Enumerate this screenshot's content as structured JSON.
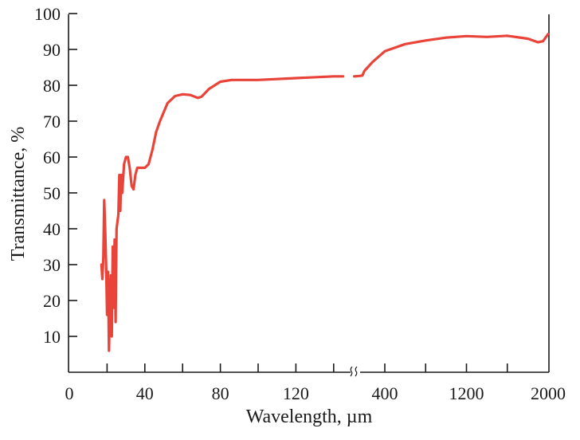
{
  "chart_data": {
    "type": "line",
    "title": "",
    "xlabel": "Wavelength, µm",
    "ylabel": "Transmittance, %",
    "ylim": [
      0,
      100
    ],
    "grid": false,
    "legend": "none",
    "line_color": "#e8443a",
    "x_axis_break": "between 140 and 400 (split scale)",
    "x_ticks_left": [
      "0",
      "40",
      "80",
      "120"
    ],
    "x_ticks_right": [
      "400",
      "1200",
      "2000"
    ],
    "y_ticks": [
      "10",
      "20",
      "30",
      "40",
      "50",
      "60",
      "70",
      "80",
      "90",
      "100"
    ],
    "series": [
      {
        "name": "segment-low-wavelength",
        "xlim": [
          0,
          150
        ],
        "points": [
          [
            17,
            30
          ],
          [
            17.5,
            26
          ],
          [
            18,
            32
          ],
          [
            18.5,
            48
          ],
          [
            19,
            40
          ],
          [
            19.5,
            30
          ],
          [
            20,
            16
          ],
          [
            20.5,
            28
          ],
          [
            21,
            6
          ],
          [
            21.5,
            20
          ],
          [
            22,
            27
          ],
          [
            22.5,
            10
          ],
          [
            23,
            35
          ],
          [
            23.5,
            18
          ],
          [
            24,
            37
          ],
          [
            24.5,
            14
          ],
          [
            25,
            40
          ],
          [
            26,
            44
          ],
          [
            26.5,
            55
          ],
          [
            27,
            45
          ],
          [
            27.5,
            55
          ],
          [
            28,
            50
          ],
          [
            29,
            58
          ],
          [
            30,
            60
          ],
          [
            31,
            60
          ],
          [
            32,
            57
          ],
          [
            33,
            52
          ],
          [
            34,
            51
          ],
          [
            35,
            55
          ],
          [
            36,
            57
          ],
          [
            38,
            57
          ],
          [
            40,
            57
          ],
          [
            42,
            58
          ],
          [
            44,
            62
          ],
          [
            46,
            67
          ],
          [
            48,
            70
          ],
          [
            52,
            75
          ],
          [
            56,
            77
          ],
          [
            60,
            77.5
          ],
          [
            64,
            77.3
          ],
          [
            68,
            76.5
          ],
          [
            70,
            76.8
          ],
          [
            74,
            79
          ],
          [
            80,
            81
          ],
          [
            86,
            81.5
          ],
          [
            100,
            81.5
          ],
          [
            120,
            82
          ],
          [
            140,
            82.5
          ],
          [
            145,
            82.5
          ]
        ]
      },
      {
        "name": "segment-high-wavelength",
        "xlim": [
          100,
          2000
        ],
        "points": [
          [
            100,
            82.5
          ],
          [
            150,
            82.6
          ],
          [
            180,
            82.7
          ],
          [
            200,
            84
          ],
          [
            280,
            86.5
          ],
          [
            400,
            89.5
          ],
          [
            600,
            91.5
          ],
          [
            800,
            92.5
          ],
          [
            1000,
            93.3
          ],
          [
            1200,
            93.7
          ],
          [
            1400,
            93.5
          ],
          [
            1600,
            93.8
          ],
          [
            1800,
            93
          ],
          [
            1900,
            92
          ],
          [
            1950,
            92.3
          ],
          [
            2000,
            94.3
          ]
        ]
      }
    ]
  }
}
